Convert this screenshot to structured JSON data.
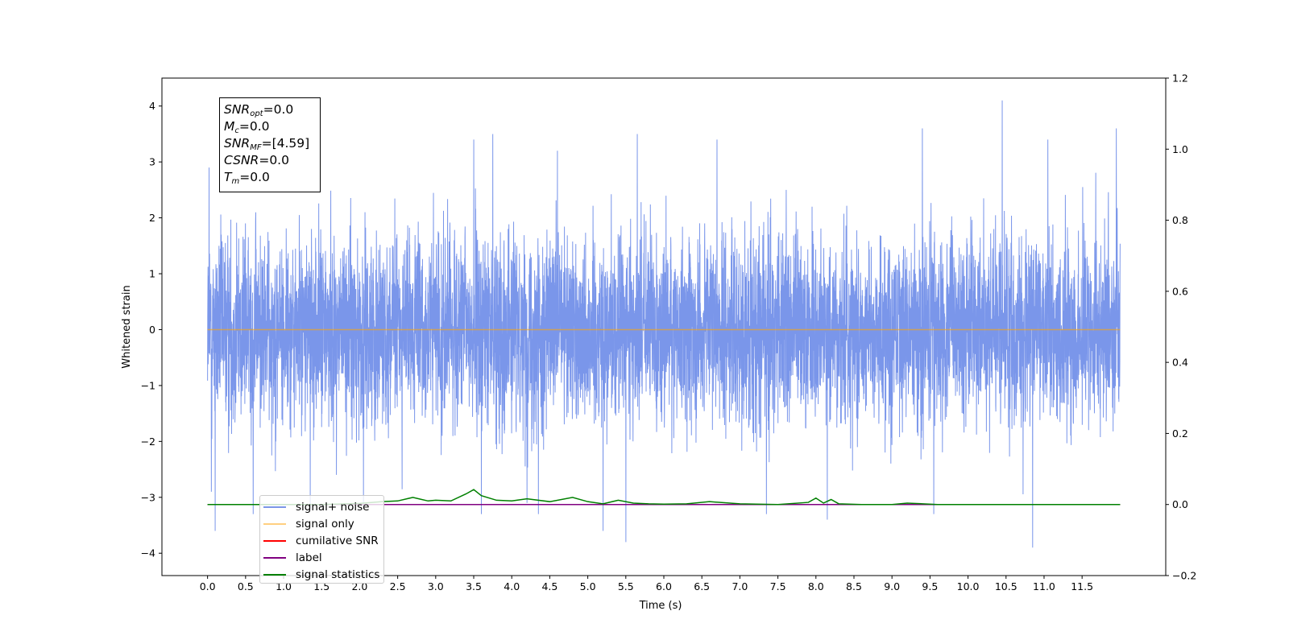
{
  "chart_data": {
    "type": "line",
    "title": "",
    "xlabel": "Time (s)",
    "ylabel": "Whitened strain",
    "xlim": [
      -0.6,
      12.6
    ],
    "ylim": [
      -4.4,
      4.5
    ],
    "y2lim": [
      -0.2,
      1.2
    ],
    "x_ticks": [
      "0.0",
      "0.5",
      "1.0",
      "1.5",
      "2.0",
      "2.5",
      "3.0",
      "3.5",
      "4.0",
      "4.5",
      "5.0",
      "5.5",
      "6.0",
      "6.5",
      "7.0",
      "7.5",
      "8.0",
      "8.5",
      "9.0",
      "9.5",
      "10.0",
      "10.5",
      "11.0",
      "11.5"
    ],
    "y_ticks": [
      "4",
      "3",
      "2",
      "1",
      "0",
      "−1",
      "−2",
      "−3",
      "−4"
    ],
    "y2_ticks": [
      "1.2",
      "1.0",
      "0.8",
      "0.6",
      "0.4",
      "0.2",
      "0.0",
      "−0.2"
    ],
    "grid": false,
    "legend_position": "lower-left",
    "annotations": [
      {
        "main": "SNR",
        "sub": "opt",
        "value": "=0.0"
      },
      {
        "main": "M",
        "sub": "c",
        "value": "=0.0"
      },
      {
        "main": "SNR",
        "sub": "MF",
        "value": "=[4.59]"
      },
      {
        "main": "CSNR",
        "sub": "",
        "value": "=0.0"
      },
      {
        "main": "T",
        "sub": "m",
        "value": "=0.0"
      }
    ],
    "series": [
      {
        "name": "signal+ noise",
        "color": "#4169e1",
        "axis": "left",
        "t_range": [
          0.0,
          12.0
        ],
        "std": 0.85,
        "peaks": [
          [
            0.02,
            2.9
          ],
          [
            0.05,
            -2.9
          ],
          [
            0.1,
            -3.6
          ],
          [
            0.6,
            -3.3
          ],
          [
            1.35,
            -3.2
          ],
          [
            2.05,
            -3.2
          ],
          [
            3.5,
            3.4
          ],
          [
            3.6,
            -3.3
          ],
          [
            3.75,
            3.5
          ],
          [
            4.2,
            -3.1
          ],
          [
            4.35,
            -3.3
          ],
          [
            4.6,
            3.2
          ],
          [
            5.2,
            -3.6
          ],
          [
            5.5,
            -3.8
          ],
          [
            5.65,
            3.5
          ],
          [
            6.7,
            3.4
          ],
          [
            7.35,
            -3.3
          ],
          [
            8.15,
            -3.4
          ],
          [
            9.4,
            3.6
          ],
          [
            9.55,
            -3.3
          ],
          [
            10.45,
            4.1
          ],
          [
            10.85,
            -3.9
          ],
          [
            11.05,
            3.4
          ],
          [
            11.95,
            3.6
          ]
        ]
      },
      {
        "name": "signal only",
        "color": "#ffa500",
        "axis": "left",
        "x": [
          0.0,
          12.0
        ],
        "y": [
          0.0,
          0.0
        ]
      },
      {
        "name": "cumilative SNR",
        "color": "#ff0000",
        "axis": "right",
        "x": [
          0.0,
          12.0
        ],
        "y": [
          0.0,
          0.0
        ]
      },
      {
        "name": "label",
        "color": "#800080",
        "axis": "right",
        "x": [
          0.0,
          12.0
        ],
        "y": [
          0.0,
          0.0
        ]
      },
      {
        "name": "signal statistics",
        "color": "#008000",
        "axis": "right",
        "x": [
          0.0,
          0.5,
          1.0,
          1.5,
          2.0,
          2.3,
          2.5,
          2.7,
          2.8,
          2.9,
          3.0,
          3.2,
          3.4,
          3.5,
          3.6,
          3.8,
          4.0,
          4.2,
          4.5,
          4.8,
          5.0,
          5.2,
          5.4,
          5.6,
          5.8,
          6.0,
          6.3,
          6.6,
          7.0,
          7.5,
          7.9,
          8.0,
          8.1,
          8.2,
          8.3,
          8.6,
          9.0,
          9.2,
          9.6,
          10.0,
          11.0,
          12.0
        ],
        "y": [
          0.0,
          0.0,
          0.0,
          0.0,
          0.003,
          0.008,
          0.01,
          0.02,
          0.015,
          0.01,
          0.012,
          0.01,
          0.03,
          0.042,
          0.025,
          0.012,
          0.01,
          0.016,
          0.008,
          0.02,
          0.008,
          0.002,
          0.012,
          0.004,
          0.002,
          0.001,
          0.002,
          0.008,
          0.002,
          0.0,
          0.006,
          0.018,
          0.004,
          0.014,
          0.002,
          0.0,
          0.0,
          0.004,
          0.0,
          0.0,
          0.0,
          0.0
        ]
      }
    ]
  }
}
